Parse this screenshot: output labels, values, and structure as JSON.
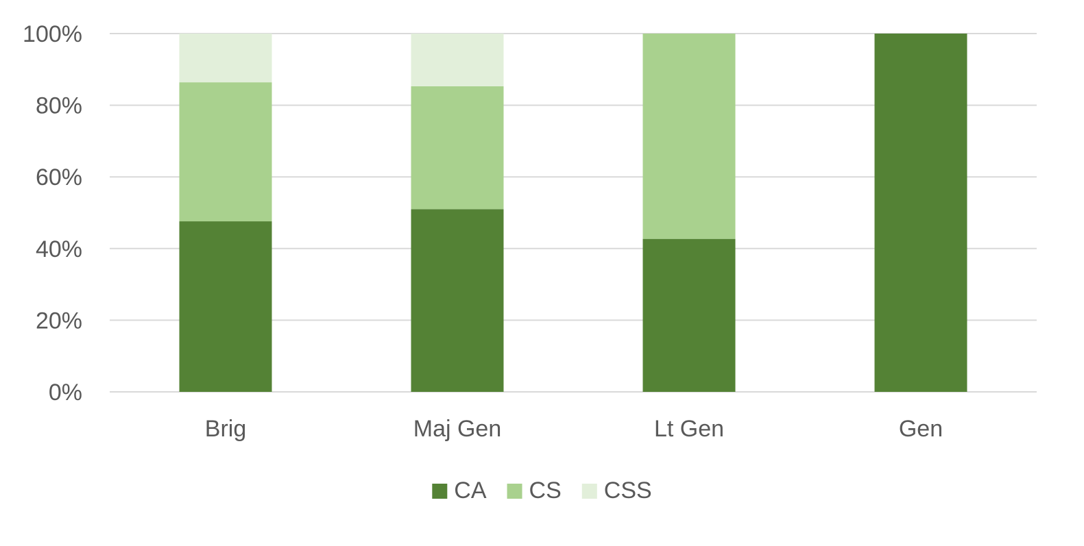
{
  "chart_data": {
    "type": "bar",
    "stacked": true,
    "percent_stacked": true,
    "categories": [
      "Brig",
      "Maj Gen",
      "Lt Gen",
      "Gen"
    ],
    "series": [
      {
        "name": "CA",
        "color": "#548235",
        "values": [
          47.6,
          51.0,
          42.7,
          100
        ]
      },
      {
        "name": "CS",
        "color": "#A9D18E",
        "values": [
          38.8,
          34.3,
          57.3,
          0
        ]
      },
      {
        "name": "CSS",
        "color": "#E2EFDA",
        "values": [
          13.6,
          14.7,
          0,
          0
        ]
      }
    ],
    "y_ticks": [
      "0%",
      "20%",
      "40%",
      "60%",
      "80%",
      "100%"
    ],
    "ylim": [
      0,
      100
    ],
    "grid": true,
    "legend": "bottom-center"
  }
}
